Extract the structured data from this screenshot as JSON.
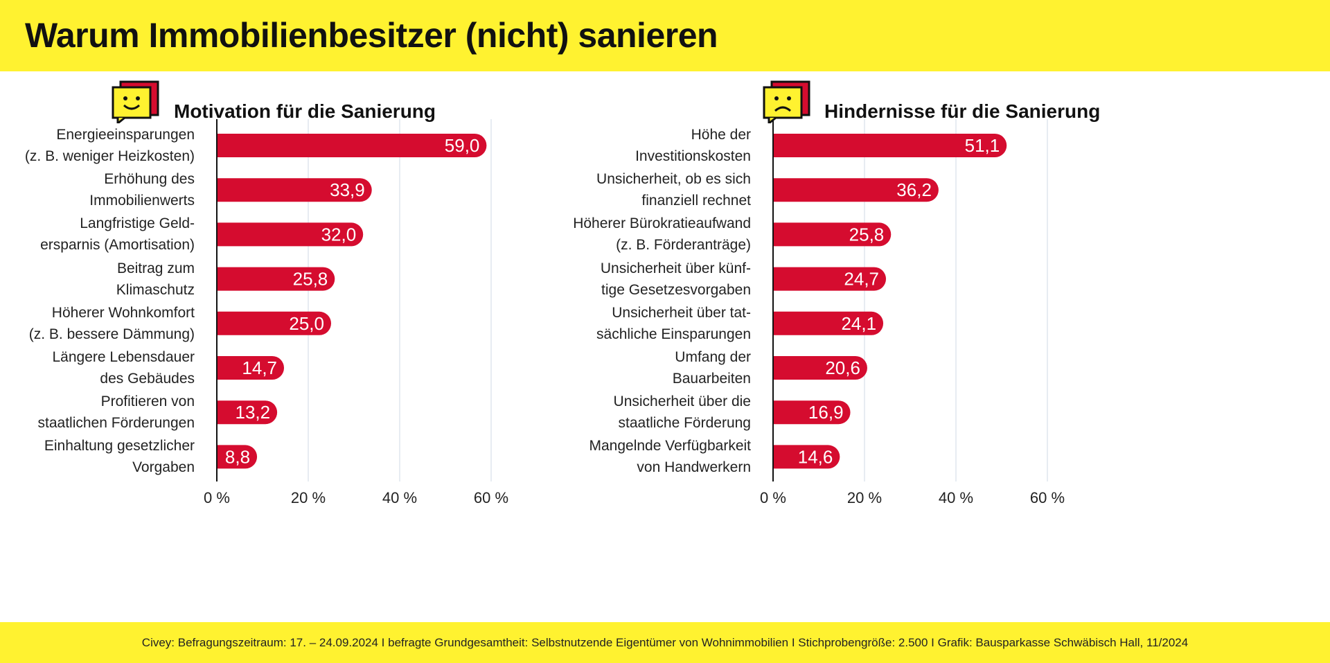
{
  "title": "Warum Immobilienbesitzer (nicht) sanieren",
  "footer": "Civey: Befragungszeitraum: 17. – 24.09.2024 I befragte Grundgesamtheit: Selbstnutzende Eigentümer von Wohnimmobilien I Stichprobengröße: 2.500 I Grafik: Bausparkasse Schwäbisch Hall, 11/2024",
  "colors": {
    "bar": "#d50c2f",
    "accent": "#fff230",
    "grid": "#dfe6ee"
  },
  "chart_data": [
    {
      "type": "bar",
      "orientation": "horizontal",
      "title": "Motivation für die Sanierung",
      "icon": "smiley-happy-icon",
      "categories": [
        "Energieeinsparungen\n(z. B. weniger Heizkosten)",
        "Erhöhung des\nImmobilienwerts",
        "Langfristige Geld-\nersparnis (Amortisation)",
        "Beitrag zum\nKlimaschutz",
        "Höherer Wohnkomfort\n(z. B. bessere Dämmung)",
        "Längere Lebensdauer\ndes Gebäudes",
        "Profitieren von\nstaatlichen Förderungen",
        "Einhaltung gesetzlicher\nVorgaben"
      ],
      "values": [
        59.0,
        33.9,
        32.0,
        25.8,
        25.0,
        14.7,
        13.2,
        8.8
      ],
      "value_labels": [
        "59,0",
        "33,9",
        "32,0",
        "25,8",
        "25,0",
        "14,7",
        "13,2",
        "8,8"
      ],
      "xlim": [
        0,
        60
      ],
      "xticks": [
        "0 %",
        "20 %",
        "40 %",
        "60 %"
      ],
      "grid": true
    },
    {
      "type": "bar",
      "orientation": "horizontal",
      "title": "Hindernisse für die Sanierung",
      "icon": "smiley-sad-icon",
      "categories": [
        "Höhe der\nInvestitionskosten",
        "Unsicherheit, ob es sich\nfinanziell rechnet",
        "Höherer Bürokratieaufwand\n(z. B. Förderanträge)",
        "Unsicherheit über künf-\ntige Gesetzesvorgaben",
        "Unsicherheit über tat-\nsächliche Einsparungen",
        "Umfang der\nBauarbeiten",
        "Unsicherheit über die\nstaatliche Förderung",
        "Mangelnde Verfügbarkeit\nvon Handwerkern"
      ],
      "values": [
        51.1,
        36.2,
        25.8,
        24.7,
        24.1,
        20.6,
        16.9,
        14.6
      ],
      "value_labels": [
        "51,1",
        "36,2",
        "25,8",
        "24,7",
        "24,1",
        "20,6",
        "16,9",
        "14,6"
      ],
      "xlim": [
        0,
        60
      ],
      "xticks": [
        "0 %",
        "20 %",
        "40 %",
        "60 %"
      ],
      "grid": true
    }
  ]
}
